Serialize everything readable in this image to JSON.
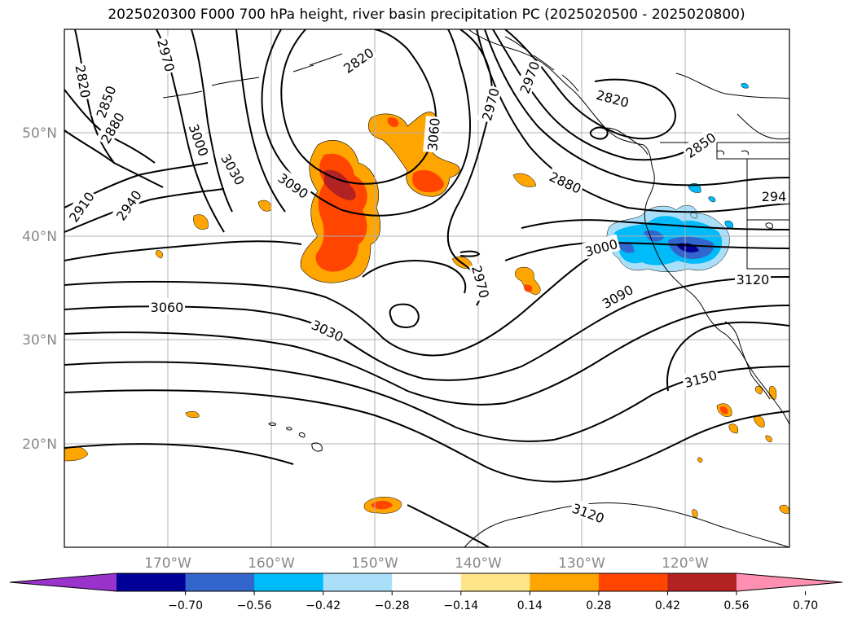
{
  "title": "2025020300 F000 700 hPa height, river basin precipitation PC (2025020500 - 2025020800)",
  "lat_labels": [
    "50°N",
    "40°N",
    "30°N",
    "20°N"
  ],
  "lon_labels": [
    "170°W",
    "160°W",
    "150°W",
    "140°W",
    "130°W",
    "120°W"
  ],
  "contour_labels": [
    {
      "text": "2820",
      "rot": 80
    },
    {
      "text": "2850",
      "rot": -70
    },
    {
      "text": "2880",
      "rot": -60
    },
    {
      "text": "2910",
      "rot": -55
    },
    {
      "text": "2940",
      "rot": -55
    },
    {
      "text": "2970",
      "rot": 75
    },
    {
      "text": "3000",
      "rot": 70
    },
    {
      "text": "3030",
      "rot": 60
    },
    {
      "text": "3090",
      "rot": 35
    },
    {
      "text": "2820",
      "rot": -35
    },
    {
      "text": "3060",
      "rot": -85
    },
    {
      "text": "2970",
      "rot": -75
    },
    {
      "text": "2970",
      "rot": -70
    },
    {
      "text": "2820",
      "rot": 15
    },
    {
      "text": "2850",
      "rot": -35
    },
    {
      "text": "2880",
      "rot": 25
    },
    {
      "text": "294",
      "rot": 0
    },
    {
      "text": "3000",
      "rot": -15
    },
    {
      "text": "3090",
      "rot": -30
    },
    {
      "text": "3120",
      "rot": 0
    },
    {
      "text": "2970",
      "rot": 75
    },
    {
      "text": "3060",
      "rot": 0
    },
    {
      "text": "3030",
      "rot": 25
    },
    {
      "text": "3150",
      "rot": -15
    },
    {
      "text": "3120",
      "rot": 20
    }
  ],
  "colorbar": {
    "ticks": [
      "−0.70",
      "−0.56",
      "−0.42",
      "−0.28",
      "−0.14",
      "0.14",
      "0.28",
      "0.42",
      "0.56",
      "0.70"
    ],
    "colors": [
      "#9933cc",
      "#000099",
      "#3366cc",
      "#00bbf9",
      "#aadff9",
      "#ffffff",
      "#ffe58a",
      "#ffa500",
      "#ff4500",
      "#b22222",
      "#ff8fb1"
    ]
  },
  "colors": {
    "contour": "#000000",
    "grid": "#b0b0b0",
    "coast": "#000000"
  }
}
